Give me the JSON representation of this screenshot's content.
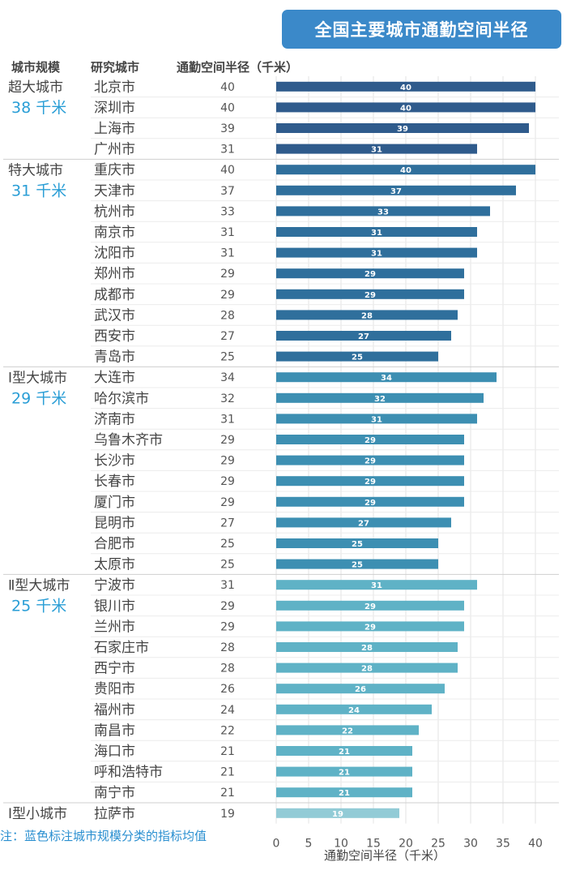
{
  "title": "全国主要城市通勤空间半径",
  "headers": {
    "scale": "城市规模",
    "city": "研究城市",
    "radius": "通勤空间半径（千米）"
  },
  "footnote": "注：蓝色标注城市规模分类的指标均值",
  "chart_data": {
    "type": "bar",
    "orientation": "horizontal",
    "xlabel": "通勤空间半径（千米）",
    "xlim": [
      0,
      40
    ],
    "xticks": [
      0,
      5,
      10,
      15,
      20,
      25,
      30,
      35,
      40
    ],
    "grid": true,
    "groups": [
      {
        "name": "超大城市",
        "mean": "38 千米",
        "color": "#2f5b8c",
        "cities": [
          [
            "北京市",
            40
          ],
          [
            "深圳市",
            40
          ],
          [
            "上海市",
            39
          ],
          [
            "广州市",
            31
          ]
        ]
      },
      {
        "name": "特大城市",
        "mean": "31 千米",
        "color": "#2f6f9c",
        "cities": [
          [
            "重庆市",
            40
          ],
          [
            "天津市",
            37
          ],
          [
            "杭州市",
            33
          ],
          [
            "南京市",
            31
          ],
          [
            "沈阳市",
            31
          ],
          [
            "郑州市",
            29
          ],
          [
            "成都市",
            29
          ],
          [
            "武汉市",
            28
          ],
          [
            "西安市",
            27
          ],
          [
            "青岛市",
            25
          ]
        ]
      },
      {
        "name": "Ⅰ型大城市",
        "mean": "29 千米",
        "color": "#3d8fb2",
        "cities": [
          [
            "大连市",
            34
          ],
          [
            "哈尔滨市",
            32
          ],
          [
            "济南市",
            31
          ],
          [
            "乌鲁木齐市",
            29
          ],
          [
            "长沙市",
            29
          ],
          [
            "长春市",
            29
          ],
          [
            "厦门市",
            29
          ],
          [
            "昆明市",
            27
          ],
          [
            "合肥市",
            25
          ],
          [
            "太原市",
            25
          ]
        ]
      },
      {
        "name": "Ⅱ型大城市",
        "mean": "25 千米",
        "color": "#5fb2c6",
        "cities": [
          [
            "宁波市",
            31
          ],
          [
            "银川市",
            29
          ],
          [
            "兰州市",
            29
          ],
          [
            "石家庄市",
            28
          ],
          [
            "西宁市",
            28
          ],
          [
            "贵阳市",
            26
          ],
          [
            "福州市",
            24
          ],
          [
            "南昌市",
            22
          ],
          [
            "海口市",
            21
          ],
          [
            "呼和浩特市",
            21
          ],
          [
            "南宁市",
            21
          ]
        ]
      },
      {
        "name": "Ⅰ型小城市",
        "mean": "",
        "color": "#92cbd6",
        "cities": [
          [
            "拉萨市",
            19
          ]
        ]
      }
    ]
  }
}
